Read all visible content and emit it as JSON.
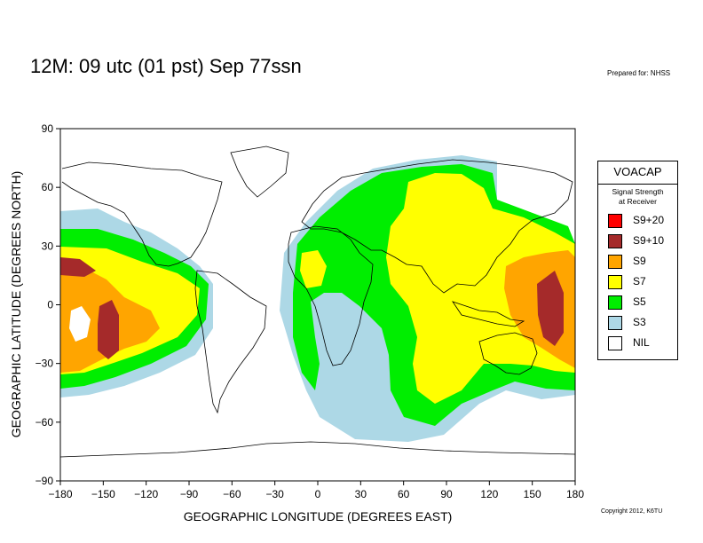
{
  "header": {
    "title": "12M:  09 utc (01 pst) Sep 77ssn",
    "prepared": "Prepared for: NHSS",
    "copyright": "Copyright 2012, K6TU"
  },
  "axes": {
    "xlabel": "GEOGRAPHIC LONGITUDE (DEGREES EAST)",
    "ylabel": "GEOGRAPHIC LATITUDE (DEGREES NORTH)",
    "xlim": [
      -180,
      180
    ],
    "ylim": [
      -90,
      90
    ],
    "xticks": [
      "−180",
      "−150",
      "−120",
      "−90",
      "−60",
      "−30",
      "0",
      "30",
      "60",
      "90",
      "120",
      "150",
      "180"
    ],
    "yticks": [
      "90",
      "60",
      "30",
      "0",
      "−30",
      "−60",
      "−90"
    ]
  },
  "legend": {
    "title": "VOACAP",
    "subtitle_line1": "Signal Strength",
    "subtitle_line2": "at Receiver",
    "items": [
      {
        "label": "S9+20",
        "color": "#ff0000"
      },
      {
        "label": "S9+10",
        "color": "#a52a2a"
      },
      {
        "label": "S9",
        "color": "#ffa500"
      },
      {
        "label": "S7",
        "color": "#ffff00"
      },
      {
        "label": "S5",
        "color": "#00ee00"
      },
      {
        "label": "S3",
        "color": "#add8e6"
      },
      {
        "label": "NIL",
        "color": "#ffffff"
      }
    ]
  }
}
